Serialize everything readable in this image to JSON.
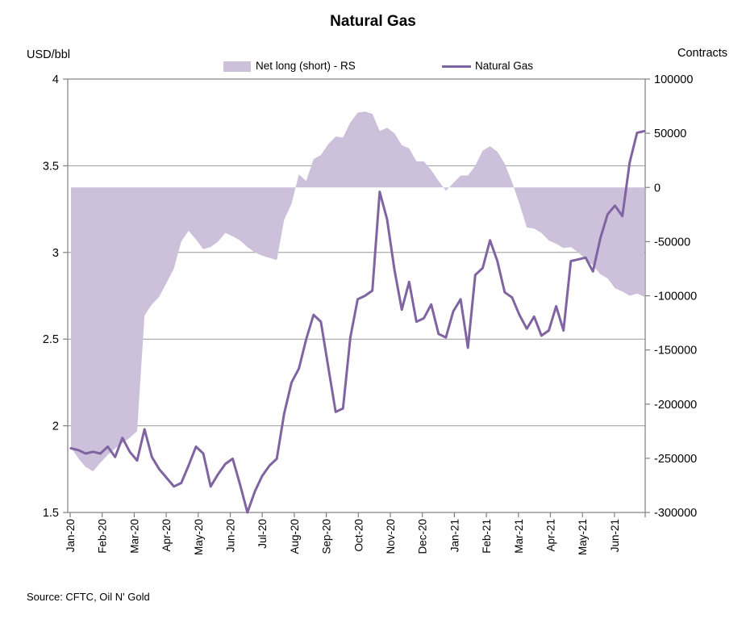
{
  "title": "Natural Gas",
  "source": "Source: CFTC, Oil N' Gold",
  "legend": {
    "area_label": "Net long (short) - RS",
    "line_label": "Natural Gas"
  },
  "chart_data": {
    "type": "area+line",
    "title": "Natural Gas",
    "frequency": "weekly",
    "legend_position": "top-center",
    "grid": "horizontal major gridlines",
    "x_labels": [
      "Jan-20",
      "Feb-20",
      "Mar-20",
      "Apr-20",
      "May-20",
      "Jun-20",
      "Jul-20",
      "Aug-20",
      "Sep-20",
      "Oct-20",
      "Nov-20",
      "Dec-20",
      "Jan-21",
      "Feb-21",
      "Mar-21",
      "Apr-21",
      "May-21",
      "Jun-21"
    ],
    "left_axis": {
      "title": "USD/bbl",
      "min": 1.5,
      "max": 4,
      "ticks": [
        4,
        3.5,
        3,
        2.5,
        2,
        1.5
      ],
      "labels": [
        "4",
        "3.5",
        "3",
        "2.5",
        "2",
        "1.5"
      ]
    },
    "right_axis": {
      "title": "Contracts",
      "min": -300000,
      "max": 100000,
      "ticks": [
        100000,
        50000,
        0,
        -50000,
        -100000,
        -150000,
        -200000,
        -250000,
        -300000
      ],
      "labels": [
        "100000",
        "50000",
        "0",
        "-50000",
        "-100000",
        "-150000",
        "-200000",
        "-250000",
        "-300000"
      ]
    },
    "series": [
      {
        "name": "Net long (short) - RS",
        "type": "area",
        "axis": "right",
        "color": "#CCC0DA",
        "values": [
          -240000,
          -250000,
          -258000,
          -262000,
          -254000,
          -247000,
          -241000,
          -236000,
          -231000,
          -225000,
          -118000,
          -108000,
          -101000,
          -88000,
          -75000,
          -50000,
          -40000,
          -48000,
          -57000,
          -55000,
          -50000,
          -42000,
          -45000,
          -49000,
          -55000,
          -60000,
          -63000,
          -65000,
          -67000,
          -30000,
          -15000,
          12000,
          6000,
          26000,
          30000,
          40000,
          47000,
          46000,
          60000,
          69000,
          70000,
          68000,
          52000,
          55000,
          50000,
          39000,
          36000,
          24000,
          24000,
          16000,
          6000,
          -3000,
          4000,
          11000,
          11000,
          20000,
          34000,
          38000,
          33000,
          22000,
          5000,
          -15000,
          -37000,
          -38000,
          -42000,
          -49000,
          -52000,
          -56000,
          -55000,
          -60000,
          -66000,
          -72000,
          -80000,
          -84000,
          -93000,
          -96000,
          -100000,
          -98000,
          -101000
        ]
      },
      {
        "name": "Natural Gas",
        "type": "line",
        "axis": "left",
        "color": "#8064A2",
        "values": [
          1.87,
          1.86,
          1.84,
          1.85,
          1.84,
          1.88,
          1.82,
          1.93,
          1.85,
          1.8,
          1.98,
          1.82,
          1.75,
          1.7,
          1.65,
          1.67,
          1.77,
          1.88,
          1.84,
          1.65,
          1.72,
          1.78,
          1.81,
          1.66,
          1.5,
          1.62,
          1.71,
          1.77,
          1.81,
          2.07,
          2.25,
          2.33,
          2.5,
          2.64,
          2.6,
          2.34,
          2.08,
          2.1,
          2.51,
          2.73,
          2.75,
          2.78,
          3.35,
          3.19,
          2.9,
          2.67,
          2.83,
          2.6,
          2.62,
          2.7,
          2.53,
          2.51,
          2.66,
          2.73,
          2.45,
          2.87,
          2.91,
          3.07,
          2.95,
          2.77,
          2.74,
          2.64,
          2.56,
          2.63,
          2.52,
          2.55,
          2.69,
          2.55,
          2.95,
          2.96,
          2.97,
          2.89,
          3.08,
          3.22,
          3.27,
          3.21,
          3.52,
          3.69,
          3.7
        ]
      }
    ],
    "colors": {
      "area": "#CCC0DA",
      "line": "#8064A2",
      "gridline": "#999999",
      "axis": "#808080",
      "text": "#000000",
      "background": "#FFFFFF"
    }
  }
}
